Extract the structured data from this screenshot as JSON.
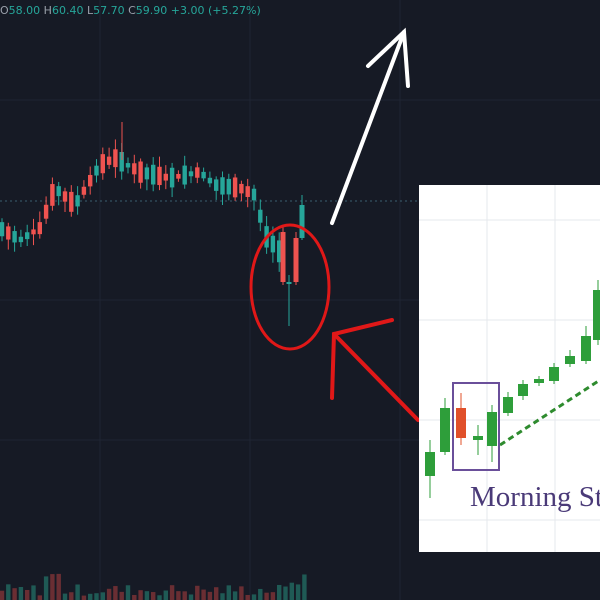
{
  "header": {
    "items": [
      {
        "label": "O",
        "value": "58.00"
      },
      {
        "label": "H",
        "value": "60.40"
      },
      {
        "label": "L",
        "value": "57.70"
      },
      {
        "label": "C",
        "value": "59.90"
      }
    ],
    "change": "+3.00 (+5.27%)"
  },
  "inset": {
    "caption": "Morning Star"
  }
}
